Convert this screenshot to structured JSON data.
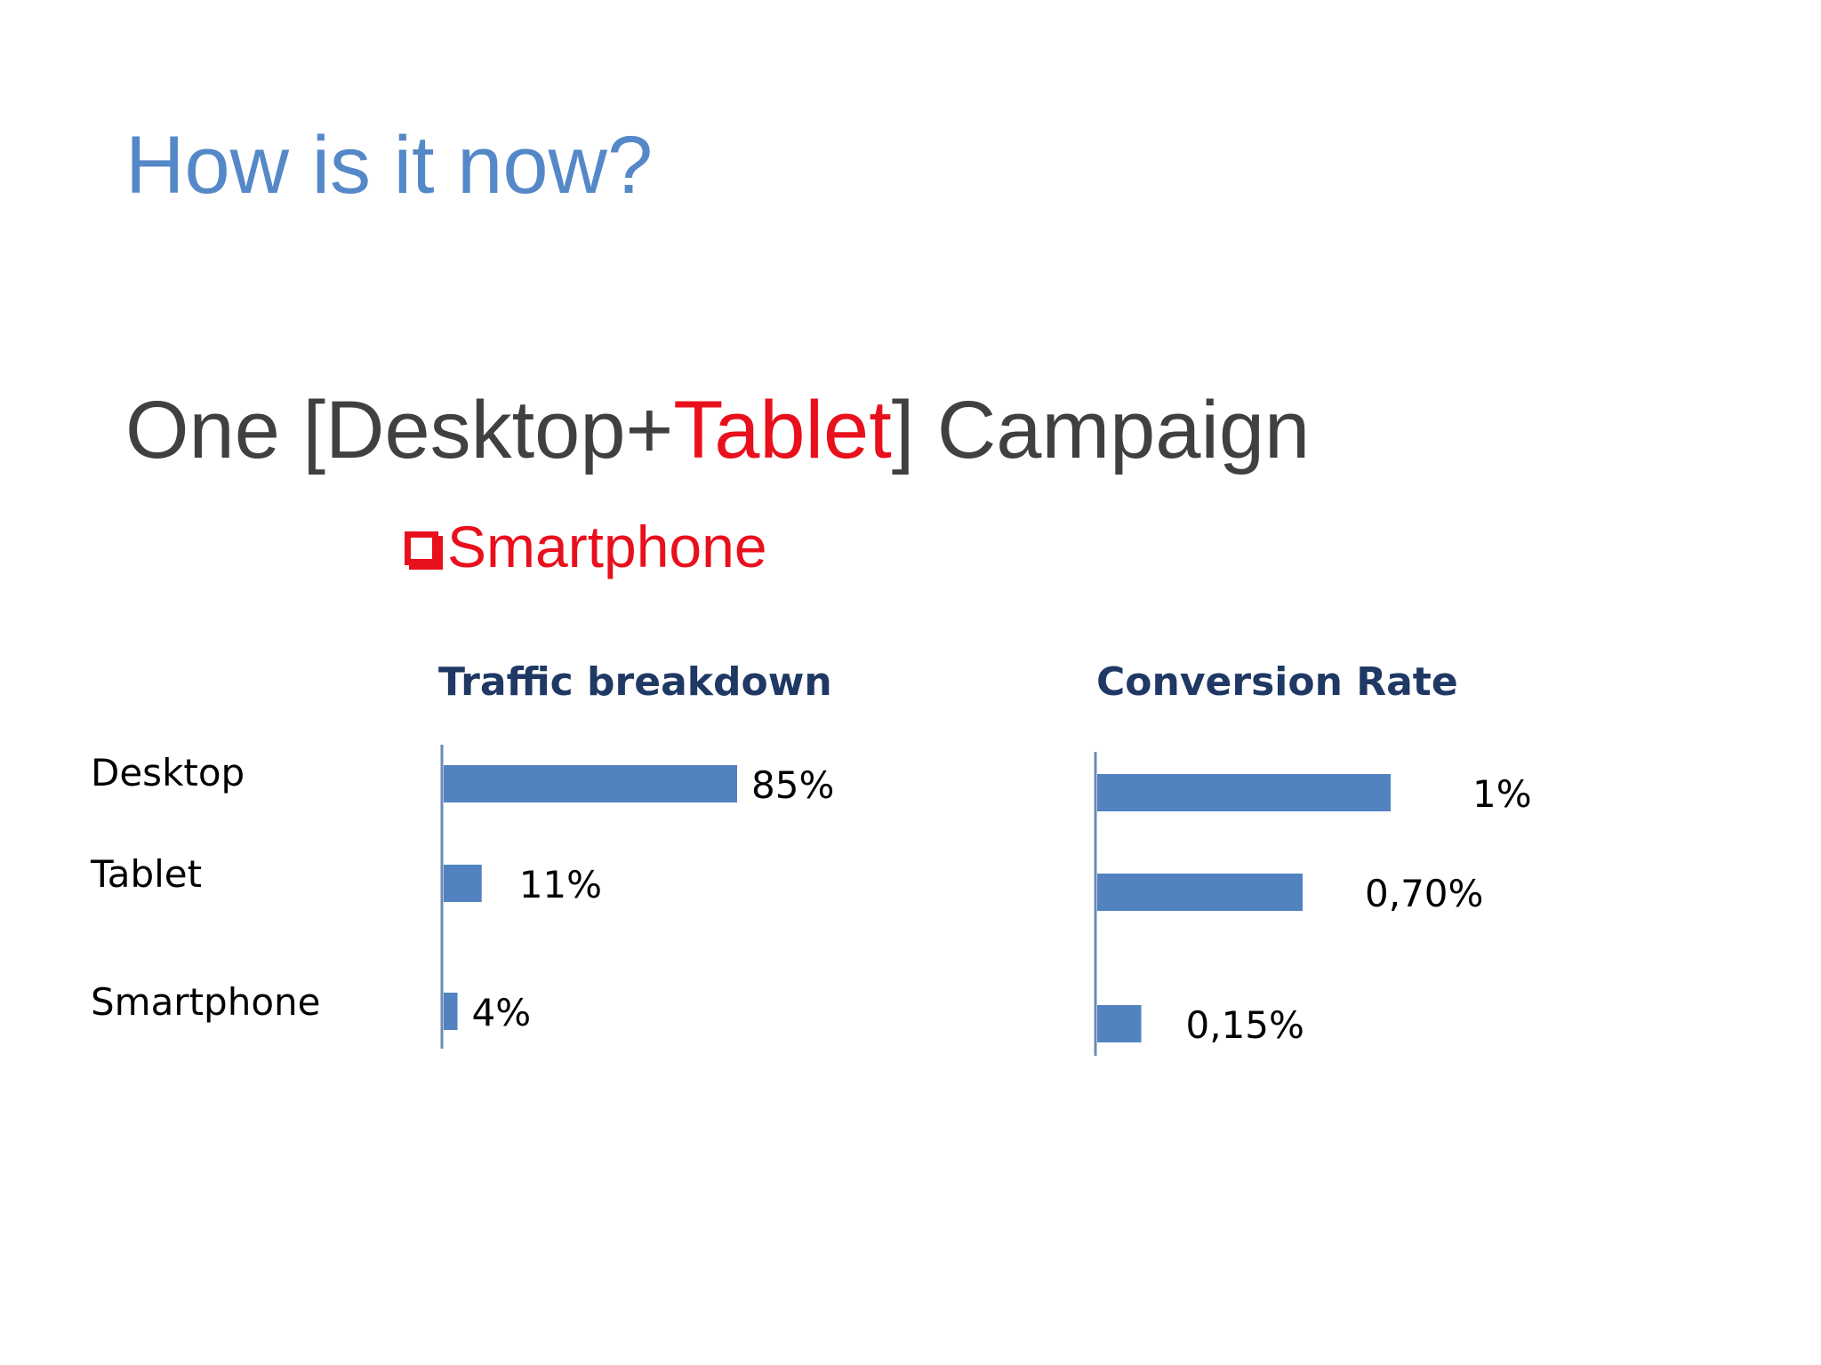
{
  "slide": {
    "title": "How is it now?",
    "heading_before": "One [Desktop+",
    "heading_accent": "Tablet",
    "heading_after": "] Campaign",
    "bullet_icon": "checkbox-icon",
    "bullet_text": "Smartphone",
    "colors": {
      "title": "#5588c8",
      "heading": "#404040",
      "accent": "#e8101c",
      "bar": "#5282c0",
      "chart_title": "#1f3864"
    }
  },
  "chart_data": [
    {
      "type": "bar",
      "orientation": "horizontal",
      "title": "Traffic breakdown",
      "categories": [
        "Desktop",
        "Tablet",
        "Smartphone"
      ],
      "values": [
        85,
        11,
        4
      ],
      "data_labels": [
        "85%",
        "11%",
        "4%"
      ],
      "xlim": [
        0,
        100
      ],
      "grid": false,
      "legend": "none"
    },
    {
      "type": "bar",
      "orientation": "horizontal",
      "title": "Conversion Rate",
      "categories": [
        "Desktop",
        "Tablet",
        "Smartphone"
      ],
      "values": [
        1.0,
        0.7,
        0.15
      ],
      "data_labels": [
        "1%",
        "0,70%",
        "0,15%"
      ],
      "xlim": [
        0,
        1.2
      ],
      "grid": false,
      "legend": "none"
    }
  ]
}
